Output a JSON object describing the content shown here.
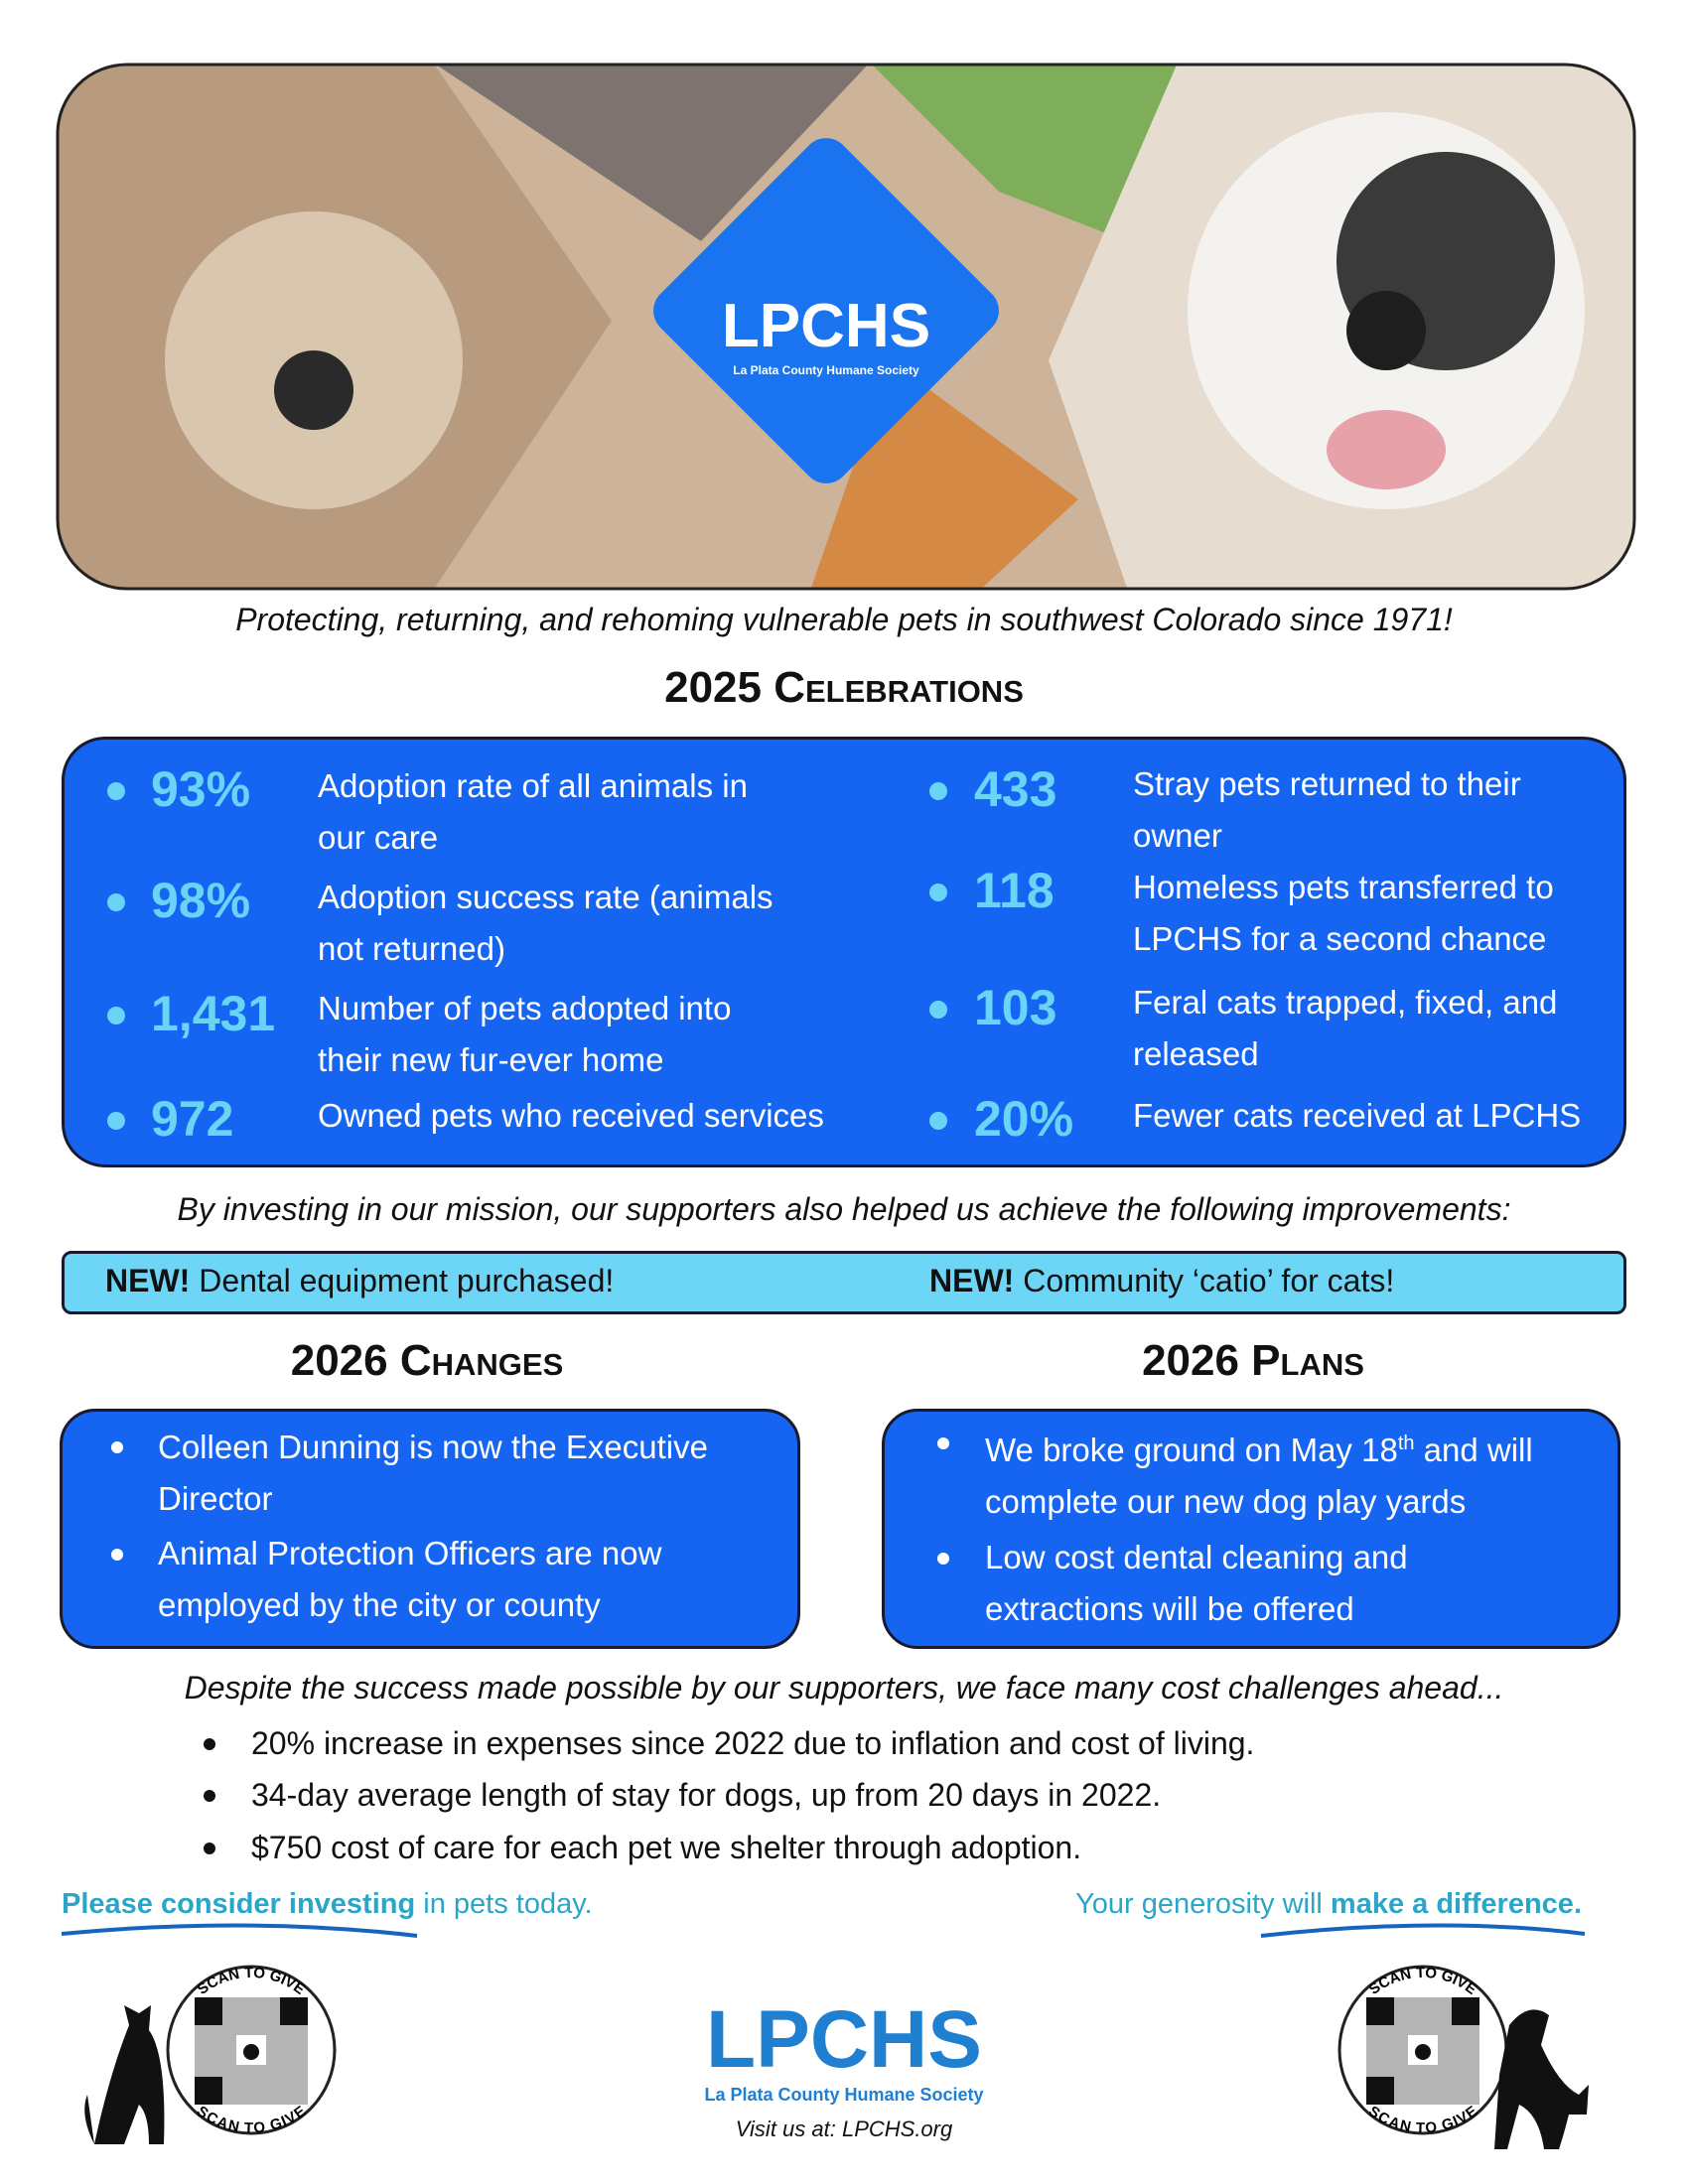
{
  "banner": {
    "logo": "LPCHS",
    "logo_subtitle": "La Plata County Humane Society"
  },
  "tagline": "Protecting, returning, and rehoming vulnerable pets in southwest Colorado since 1971!",
  "celebrations": {
    "title": "2025 Celebrations",
    "left": [
      {
        "figure": "93%",
        "text": "Adoption rate of all animals in our care"
      },
      {
        "figure": "98%",
        "text": "Adoption success rate (animals not returned)"
      },
      {
        "figure": "1,431",
        "text": "Number of pets adopted into their new fur-ever home"
      },
      {
        "figure": "972",
        "text": "Owned pets who received services"
      }
    ],
    "right": [
      {
        "figure": "433",
        "text": "Stray pets returned to their owner"
      },
      {
        "figure": "118",
        "text": "Homeless pets transferred to LPCHS for a second chance"
      },
      {
        "figure": "103",
        "text": "Feral cats trapped, fixed, and released"
      },
      {
        "figure": "20%",
        "text": "Fewer cats received at LPCHS"
      }
    ]
  },
  "improvements": {
    "intro": "By investing in our mission, our supporters also helped us achieve the following improvements:",
    "items": [
      {
        "tag": "NEW!",
        "text": "Dental equipment purchased!"
      },
      {
        "tag": "NEW!",
        "text": "Community ‘catio’ for cats!"
      }
    ]
  },
  "changes": {
    "title": "2026 Changes",
    "items": [
      "Colleen Dunning is now the Executive Director",
      "Animal Protection Officers are now employed by the city or county"
    ]
  },
  "plans": {
    "title": "2026 Plans",
    "items": [
      [
        "We broke ground on May 18",
        "th",
        " and will complete our new dog play yards"
      ],
      [
        "Low cost dental cleaning and extractions will be offered"
      ]
    ]
  },
  "challenges": {
    "intro": "Despite the success made possible by our supporters, we face many cost challenges ahead...",
    "items": [
      "20% increase in expenses since 2022 due to inflation and cost of living.",
      "34-day average length of stay for dogs, up from 20 days in 2022.",
      "$750 cost of care for each pet we shelter through adoption."
    ]
  },
  "footer": {
    "left": [
      "Please consider investing",
      " in pets today."
    ],
    "right": [
      "Your generosity will ",
      "make a difference",
      "."
    ],
    "qr_label": "SCAN TO GIVE",
    "logo": "LPCHS",
    "logo_subtitle": "La Plata County Humane Society",
    "visit": "Visit us at: LPCHS.org"
  }
}
